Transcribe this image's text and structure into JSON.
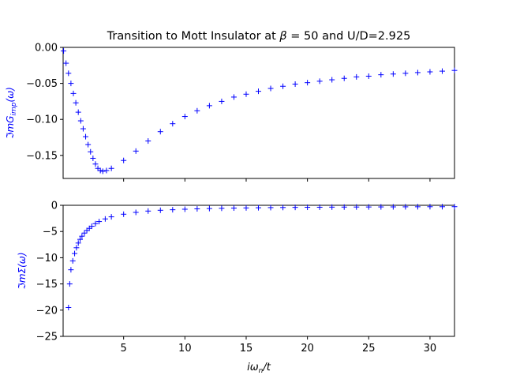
{
  "chart_data": [
    {
      "type": "scatter",
      "title": "Transition to Mott Insulator at β = 50 and U/D=2.925",
      "title_parts": {
        "prefix": "Transition to Mott Insulator at ",
        "beta": "β",
        "eq": " = 50",
        "suffix": " and U/D=2.925"
      },
      "ylabel": "ℑmG_imp(ω)",
      "ylabel_parts": {
        "main": "ℑmG",
        "sub": "imp",
        "tail": "(ω)"
      },
      "xlim": [
        0.0628,
        32.0
      ],
      "ylim": [
        -0.182,
        0.0
      ],
      "xticks": [
        5,
        10,
        15,
        20,
        25,
        30
      ],
      "show_xtick_labels": false,
      "yticks": [
        0.0,
        -0.05,
        -0.1,
        -0.15
      ],
      "ytick_labels": [
        "0.00",
        "−0.05",
        "−0.10",
        "−0.15"
      ],
      "marker": "+",
      "color": "#0000ff",
      "series": [
        {
          "x": [
            0.1,
            0.3,
            0.5,
            0.7,
            0.9,
            1.1,
            1.3,
            1.5,
            1.7,
            1.9,
            2.1,
            2.3,
            2.5,
            2.7,
            2.9,
            3.1,
            3.3,
            3.6,
            4.0,
            5.0,
            6.0,
            7.0,
            8.0,
            9.0,
            10.0,
            11.0,
            12.0,
            13.0,
            14.0,
            15.0,
            16.0,
            17.0,
            18.0,
            19.0,
            20.0,
            21.0,
            22.0,
            23.0,
            24.0,
            25.0,
            26.0,
            27.0,
            28.0,
            29.0,
            30.0,
            31.0,
            32.0
          ],
          "y": [
            -0.005,
            -0.022,
            -0.036,
            -0.05,
            -0.064,
            -0.077,
            -0.09,
            -0.102,
            -0.113,
            -0.124,
            -0.135,
            -0.145,
            -0.154,
            -0.162,
            -0.168,
            -0.171,
            -0.172,
            -0.171,
            -0.168,
            -0.157,
            -0.144,
            -0.13,
            -0.117,
            -0.106,
            -0.096,
            -0.088,
            -0.081,
            -0.075,
            -0.069,
            -0.065,
            -0.061,
            -0.057,
            -0.054,
            -0.051,
            -0.049,
            -0.047,
            -0.045,
            -0.043,
            -0.041,
            -0.04,
            -0.038,
            -0.037,
            -0.036,
            -0.035,
            -0.034,
            -0.033,
            -0.032
          ]
        }
      ]
    },
    {
      "type": "scatter",
      "xlabel": "iω_n/t",
      "xlabel_parts": {
        "main": "iω",
        "sub": "n",
        "tail": "/t"
      },
      "ylabel": "ℑmΣ(ω)",
      "xlim": [
        0.0628,
        32.0
      ],
      "ylim": [
        -25,
        0
      ],
      "xticks": [
        5,
        10,
        15,
        20,
        25,
        30
      ],
      "xtick_labels": [
        "5",
        "10",
        "15",
        "20",
        "25",
        "30"
      ],
      "yticks": [
        0,
        -5,
        -10,
        -15,
        -20,
        -25
      ],
      "ytick_labels": [
        "0",
        "−5",
        "−10",
        "−15",
        "−20",
        "−25"
      ],
      "marker": "+",
      "color": "#0000ff",
      "series": [
        {
          "x": [
            0.5,
            0.6,
            0.7,
            0.85,
            1.0,
            1.15,
            1.3,
            1.45,
            1.6,
            1.8,
            2.0,
            2.2,
            2.4,
            2.7,
            3.0,
            3.5,
            4.0,
            5.0,
            6.0,
            7.0,
            8.0,
            9.0,
            10.0,
            11.0,
            12.0,
            13.0,
            14.0,
            15.0,
            16.0,
            17.0,
            18.0,
            19.0,
            20.0,
            21.0,
            22.0,
            23.0,
            24.0,
            25.0,
            26.0,
            27.0,
            28.0,
            29.0,
            30.0,
            31.0,
            32.0
          ],
          "y": [
            -19.5,
            -15.0,
            -12.3,
            -10.6,
            -9.2,
            -8.1,
            -7.2,
            -6.5,
            -5.9,
            -5.3,
            -4.8,
            -4.4,
            -4.0,
            -3.5,
            -3.1,
            -2.6,
            -2.2,
            -1.7,
            -1.35,
            -1.1,
            -0.95,
            -0.85,
            -0.75,
            -0.68,
            -0.62,
            -0.57,
            -0.53,
            -0.5,
            -0.47,
            -0.44,
            -0.42,
            -0.4,
            -0.38,
            -0.37,
            -0.35,
            -0.34,
            -0.33,
            -0.32,
            -0.31,
            -0.3,
            -0.29,
            -0.28,
            -0.27,
            -0.27,
            -0.26
          ]
        }
      ]
    }
  ]
}
